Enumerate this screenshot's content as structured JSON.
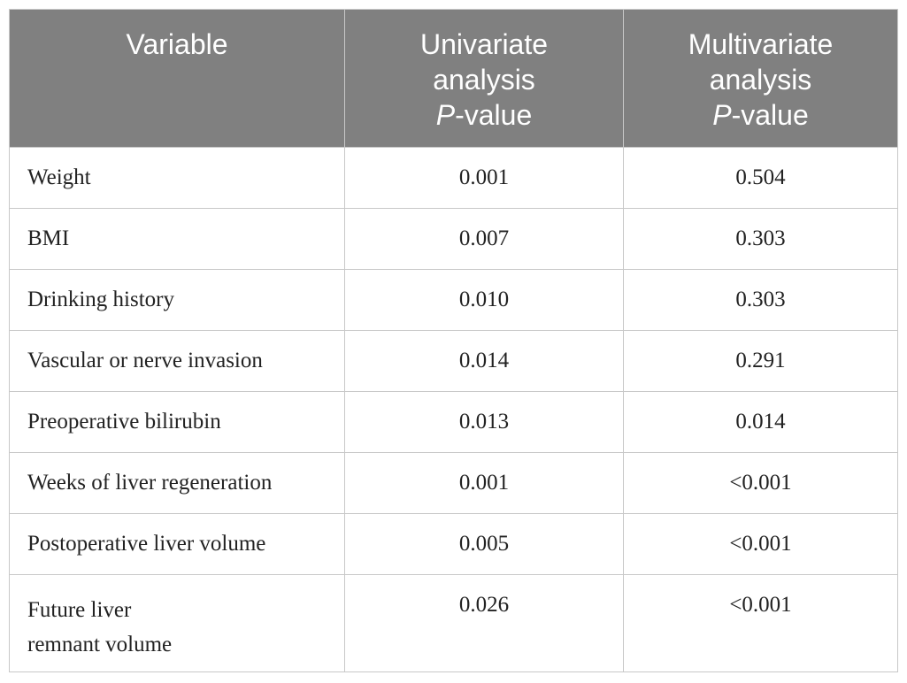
{
  "table": {
    "headers": [
      {
        "lines": [
          "Variable"
        ]
      },
      {
        "lines": [
          "Univariate",
          "analysis"
        ],
        "p": "P",
        "suffix": "-value"
      },
      {
        "lines": [
          "Multivariate",
          "analysis"
        ],
        "p": "P",
        "suffix": "-value"
      }
    ],
    "rows": [
      {
        "variable": [
          "Weight"
        ],
        "univariate": "0.001",
        "multivariate": "0.504"
      },
      {
        "variable": [
          "BMI"
        ],
        "univariate": "0.007",
        "multivariate": "0.303"
      },
      {
        "variable": [
          "Drinking history"
        ],
        "univariate": "0.010",
        "multivariate": "0.303"
      },
      {
        "variable": [
          "Vascular or nerve invasion"
        ],
        "univariate": "0.014",
        "multivariate": "0.291"
      },
      {
        "variable": [
          "Preoperative bilirubin"
        ],
        "univariate": "0.013",
        "multivariate": "0.014"
      },
      {
        "variable": [
          "Weeks of liver regeneration"
        ],
        "univariate": "0.001",
        "multivariate": "<0.001"
      },
      {
        "variable": [
          "Postoperative liver volume"
        ],
        "univariate": "0.005",
        "multivariate": "<0.001"
      },
      {
        "variable": [
          "Future liver",
          "remnant volume"
        ],
        "univariate": "0.026",
        "multivariate": "<0.001"
      }
    ]
  },
  "colors": {
    "header_bg": "#808080",
    "header_text": "#ffffff",
    "grid": "#c8c8c8",
    "body_text": "#222222"
  }
}
